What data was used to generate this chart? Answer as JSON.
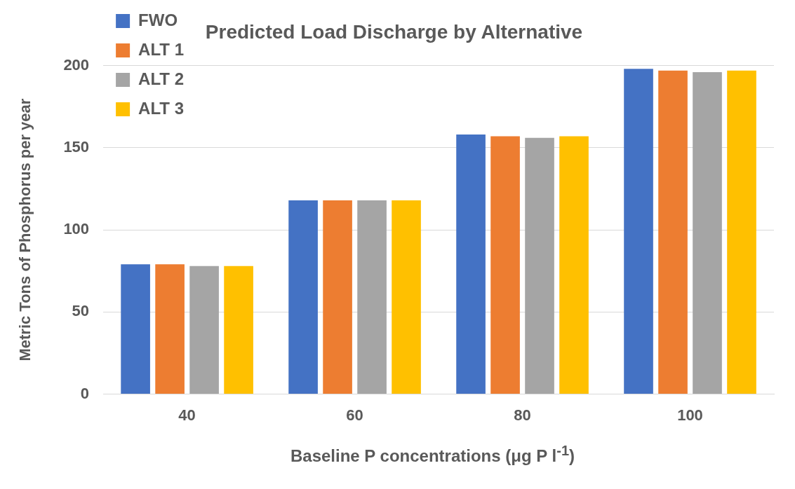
{
  "chart_data": {
    "type": "bar",
    "title": "Predicted Load Discharge by Alternative",
    "xlabel": "Baseline P concentrations (μg P l$^{-1}$)",
    "ylabel": "Metric Tons of Phosphorus per year",
    "categories": [
      "40",
      "60",
      "80",
      "100"
    ],
    "series": [
      {
        "name": "FWO",
        "color": "#4472c4",
        "values": [
          79,
          118,
          158,
          198
        ]
      },
      {
        "name": "ALT 1",
        "color": "#ed7d31",
        "values": [
          79,
          118,
          157,
          197
        ]
      },
      {
        "name": "ALT 2",
        "color": "#a5a5a5",
        "values": [
          78,
          118,
          156,
          196
        ]
      },
      {
        "name": "ALT 3",
        "color": "#ffc000",
        "values": [
          78,
          118,
          157,
          197
        ]
      }
    ],
    "ylim": [
      0,
      200
    ],
    "yticks": [
      0,
      50,
      100,
      150,
      200
    ],
    "grid": "y",
    "legend": "top left"
  }
}
